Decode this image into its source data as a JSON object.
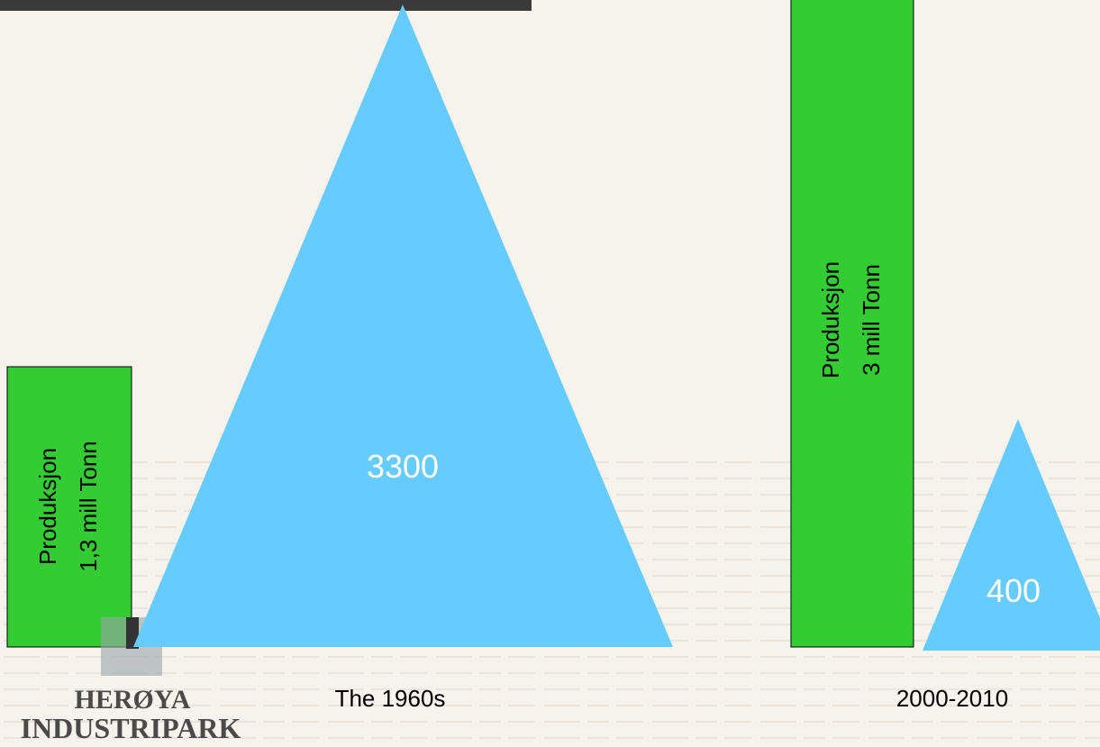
{
  "periods": [
    {
      "label": "The 1960s",
      "production": [
        "Produksjon",
        "1,3 mill Tonn"
      ],
      "count": 3300
    },
    {
      "label": "2000-2010",
      "production": [
        "Produksjon",
        "3 mill Tonn"
      ],
      "count": 400
    }
  ],
  "logo": [
    "HERØYA",
    "INDUSTRIPARK"
  ]
}
